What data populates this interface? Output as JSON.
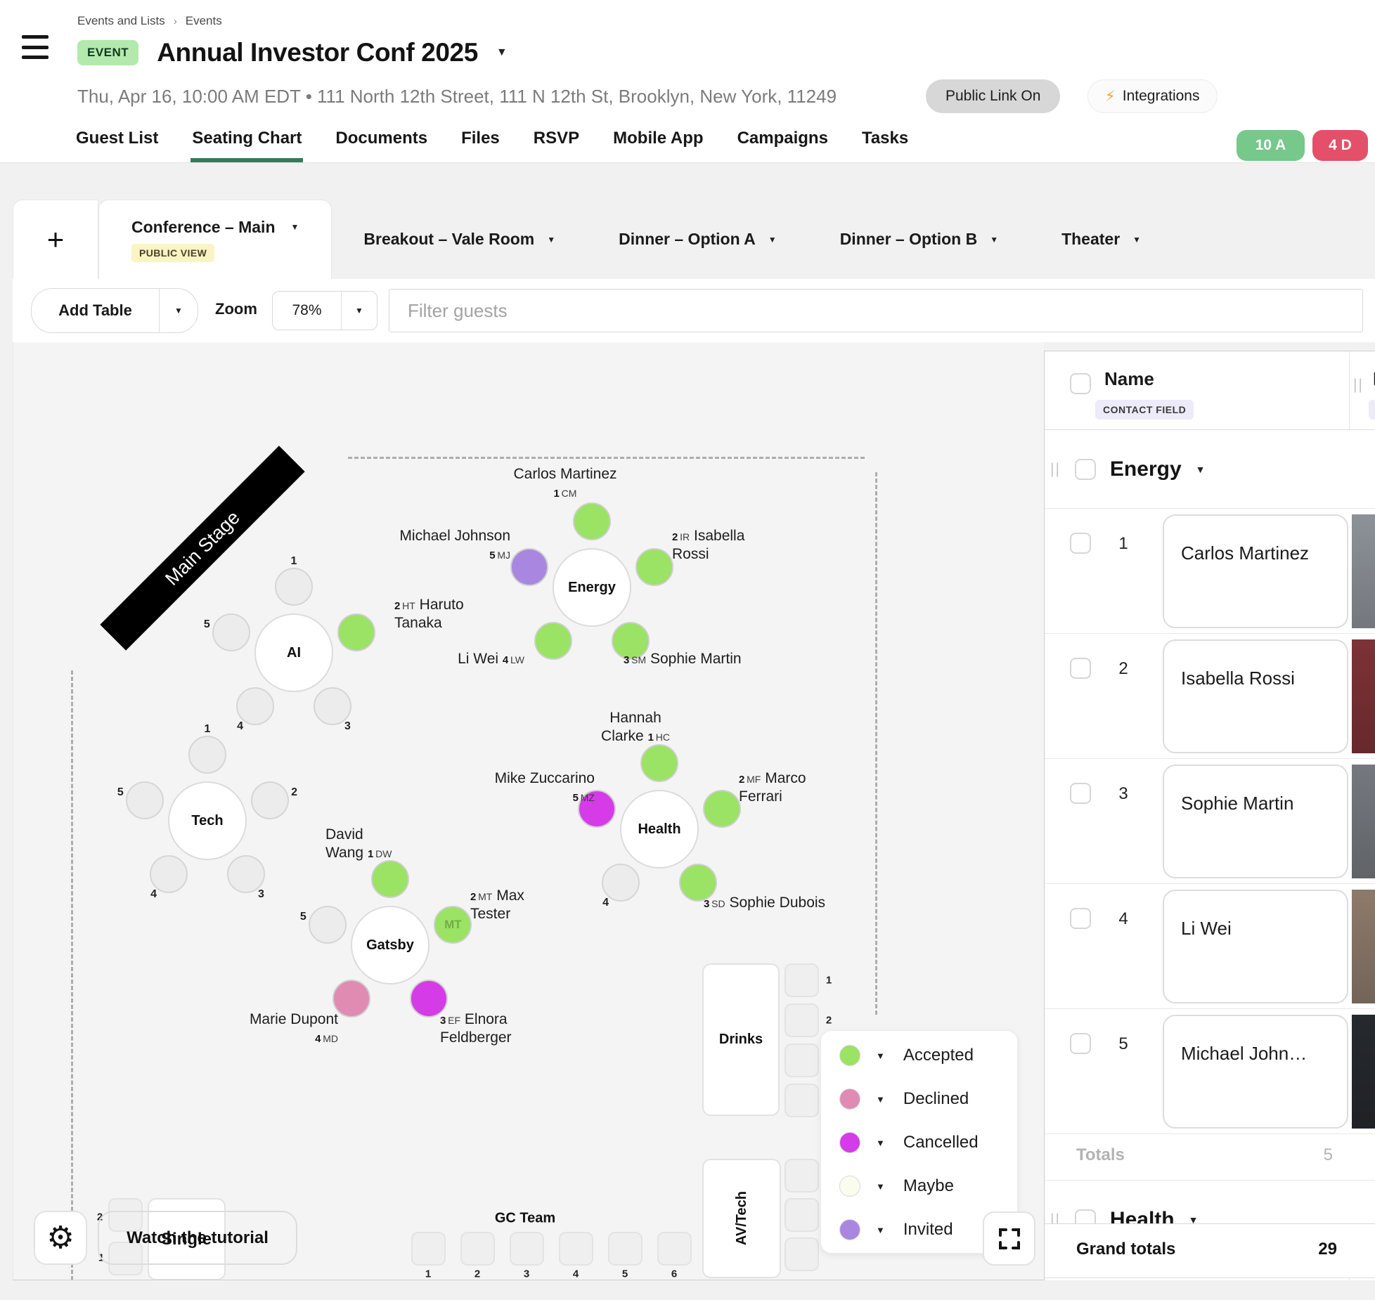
{
  "icons": {
    "caret": "▼",
    "plus": "+",
    "lightning": "⚡",
    "gear": "⚙",
    "breadcrumb_sep": "›",
    "drag_handle": "||"
  },
  "breadcrumb": [
    "Events and Lists",
    "Events"
  ],
  "header": {
    "event_badge": "EVENT",
    "title": "Annual Investor Conf 2025",
    "subtitle": "Thu, Apr 16, 10:00 AM EDT • 111 North 12th Street, 111 N 12th St, Brooklyn, New York, 11249",
    "public_link_pill": "Public Link On",
    "integrations_pill": "Integrations",
    "nav": [
      "Guest List",
      "Seating Chart",
      "Documents",
      "Files",
      "RSVP",
      "Mobile App",
      "Campaigns",
      "Tasks"
    ],
    "active_nav": "Seating Chart",
    "accepted_count_badge": "10 A",
    "declined_count_badge": "4 D"
  },
  "chart_tabs": [
    {
      "label": "Conference – Main",
      "badge": "PUBLIC VIEW",
      "active": true
    },
    {
      "label": "Breakout – Vale Room",
      "active": false
    },
    {
      "label": "Dinner – Option A",
      "active": false
    },
    {
      "label": "Dinner – Option B",
      "active": false
    },
    {
      "label": "Theater",
      "active": false
    }
  ],
  "toolbar": {
    "add_table_label": "Add Table",
    "zoom_label": "Zoom",
    "zoom_value": "78%",
    "filter_placeholder": "Filter guests"
  },
  "canvas": {
    "stage_label": "Main Stage",
    "tutorial_button": "Watch the tutorial",
    "legend": [
      {
        "label": "Accepted",
        "color": "#9ae364"
      },
      {
        "label": "Declined",
        "color": "#e08cb2"
      },
      {
        "label": "Cancelled",
        "color": "#d53ce8"
      },
      {
        "label": "Maybe",
        "color": "#fafcee"
      },
      {
        "label": "Invited",
        "color": "#a987e0"
      }
    ],
    "round_tables": [
      {
        "name": "Energy",
        "seats": [
          {
            "n": 1,
            "guest": "Carlos Martinez",
            "initials": "CM",
            "status": "accepted"
          },
          {
            "n": 2,
            "guest": "Isabella Rossi",
            "initials": "IR",
            "status": "accepted"
          },
          {
            "n": 3,
            "guest": "Sophie Martin",
            "initials": "SM",
            "status": "accepted"
          },
          {
            "n": 4,
            "guest": "Li Wei",
            "initials": "LW",
            "status": "accepted"
          },
          {
            "n": 5,
            "guest": "Michael Johnson",
            "initials": "MJ",
            "status": "invited"
          }
        ]
      },
      {
        "name": "AI",
        "seats": [
          {
            "n": 1
          },
          {
            "n": 2,
            "guest": "Haruto Tanaka",
            "initials": "HT",
            "status": "accepted"
          },
          {
            "n": 3
          },
          {
            "n": 4
          },
          {
            "n": 5
          }
        ]
      },
      {
        "name": "Tech",
        "seats": [
          {
            "n": 1
          },
          {
            "n": 2
          },
          {
            "n": 3
          },
          {
            "n": 4
          },
          {
            "n": 5
          }
        ]
      },
      {
        "name": "Health",
        "seats": [
          {
            "n": 1,
            "guest": "Hannah Clarke",
            "initials": "HC",
            "status": "accepted"
          },
          {
            "n": 2,
            "guest": "Marco Ferrari",
            "initials": "MF",
            "status": "accepted"
          },
          {
            "n": 3,
            "guest": "Sophie Dubois",
            "initials": "SD",
            "status": "accepted"
          },
          {
            "n": 4
          },
          {
            "n": 5,
            "guest": "Mike Zuccarino",
            "initials": "MZ",
            "status": "cancelled"
          }
        ]
      },
      {
        "name": "Gatsby",
        "seats": [
          {
            "n": 1,
            "guest": "David Wang",
            "initials": "DW",
            "status": "accepted"
          },
          {
            "n": 2,
            "guest": "Max Tester",
            "initials": "MT",
            "status": "accepted",
            "show_initials": true
          },
          {
            "n": 3,
            "guest": "Elnora Feldberger",
            "initials": "EF",
            "status": "cancelled"
          },
          {
            "n": 4,
            "guest": "Marie Dupont",
            "initials": "MD",
            "status": "declined"
          },
          {
            "n": 5
          }
        ]
      }
    ],
    "rect_tables": [
      {
        "name": "Drinks",
        "seat_count": 4,
        "visible_numbers": [
          "1",
          "2"
        ]
      },
      {
        "name": "AV/Tech",
        "seat_count": 3,
        "visible_numbers": []
      },
      {
        "name": "GC Team",
        "seat_count": 6,
        "visible_numbers": [
          "1",
          "2",
          "3",
          "4",
          "5",
          "6"
        ]
      },
      {
        "name": "Single",
        "seat_count": 2,
        "visible_numbers": [
          "2",
          "1"
        ]
      }
    ]
  },
  "sidebar": {
    "columns": [
      {
        "label": "Name",
        "badge": "CONTACT FIELD"
      },
      {
        "label": "P",
        "badge": "C"
      }
    ],
    "group": {
      "name": "Energy",
      "rows": [
        {
          "seat": "1",
          "name": "Carlos Martinez",
          "photo_color": "#8d9299"
        },
        {
          "seat": "2",
          "name": "Isabella Rossi",
          "photo_color": "#7d3236"
        },
        {
          "seat": "3",
          "name": "Sophie Martin",
          "photo_color": "#75797f"
        },
        {
          "seat": "4",
          "name": "Li Wei",
          "photo_color": "#8d7a6b"
        },
        {
          "seat": "5",
          "name": "Michael John…",
          "photo_color": "#26292e"
        }
      ],
      "totals_label": "Totals",
      "totals_value": "5"
    },
    "next_group_name": "Health",
    "grand_totals_label": "Grand totals",
    "grand_totals_value": "29"
  }
}
